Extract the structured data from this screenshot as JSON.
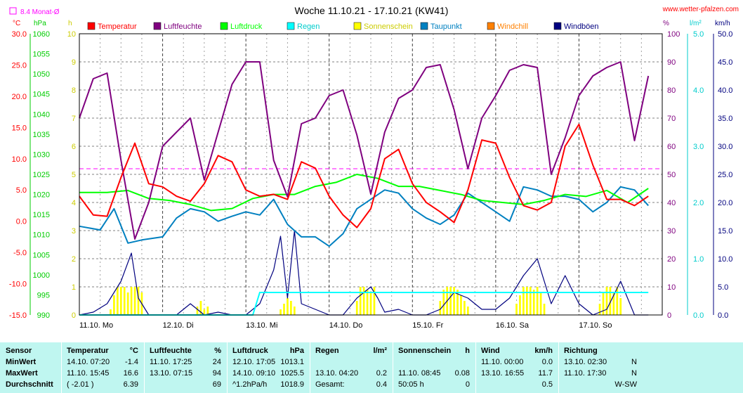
{
  "title": "Woche 11.10.21 - 17.10.21 (KW41)",
  "site": "www.wetter-pfalzen.com",
  "monthly_avg_label": "8.4 Monat-Ø",
  "axis_units": {
    "temp": "°C",
    "pressure": "hPa",
    "sun": "h",
    "humidity": "%",
    "rain": "l/m²",
    "wind": "km/h"
  },
  "legend": [
    {
      "label": "Temperatur",
      "color": "#ff0000"
    },
    {
      "label": "Luftfeuchte",
      "color": "#7f007f"
    },
    {
      "label": "Luftdruck",
      "color": "#00ff00"
    },
    {
      "label": "Regen",
      "color": "#00ffff"
    },
    {
      "label": "Sonnenschein",
      "color": "#ffff00"
    },
    {
      "label": "Taupunkt",
      "color": "#0080c0"
    },
    {
      "label": "Windchill",
      "color": "#ff8000"
    },
    {
      "label": "Windböen",
      "color": "#00007f"
    }
  ],
  "colors": {
    "temp": "#ff0000",
    "humidity": "#7f007f",
    "pressure": "#00ff00",
    "rain": "#00ffff",
    "sun": "#ffff00",
    "dewpoint": "#0080c0",
    "gusts": "#00007f",
    "avg": "#ff00ff",
    "stats_bg": "#bff6f0"
  },
  "chart_data": {
    "type": "line",
    "x_unit": "hours since 11.10. 00:00",
    "x_ticks": [
      "11.10. Mo",
      "12.10. Di",
      "13.10. Mi",
      "14.10. Do",
      "15.10. Fr",
      "16.10. Sa",
      "17.10. So"
    ],
    "axes": {
      "temp": {
        "range": [
          -15,
          30
        ],
        "ticks": [
          "30.0",
          "25.0",
          "20.0",
          "15.0",
          "10.0",
          "5.0",
          "0.0",
          "-5.0",
          "-10.0",
          "-15.0"
        ]
      },
      "pressure": {
        "range": [
          990,
          1060
        ],
        "ticks": [
          "1060",
          "1055",
          "1050",
          "1045",
          "1040",
          "1035",
          "1030",
          "1025",
          "1020",
          "1015",
          "1010",
          "1005",
          "1000",
          "995",
          "990"
        ]
      },
      "sun": {
        "range": [
          0,
          10
        ],
        "ticks": [
          "10",
          "9",
          "8",
          "7",
          "6",
          "5",
          "4",
          "3",
          "2",
          "1",
          "0"
        ]
      },
      "humidity": {
        "range": [
          0,
          100
        ],
        "ticks": [
          "100",
          "90",
          "80",
          "70",
          "60",
          "50",
          "40",
          "30",
          "20",
          "10",
          "0"
        ]
      },
      "rain": {
        "range": [
          0,
          5
        ],
        "ticks": [
          "5.0",
          "4.0",
          "3.0",
          "2.0",
          "1.0",
          "0.0"
        ]
      },
      "wind": {
        "range": [
          0,
          50
        ],
        "ticks": [
          "50.0",
          "45.0",
          "40.0",
          "35.0",
          "30.0",
          "25.0",
          "20.0",
          "15.0",
          "10.0",
          "5.0",
          "0.0"
        ]
      }
    },
    "monthly_avg_temp": 8.4,
    "series": [
      {
        "name": "Temperatur",
        "axis": "temp",
        "x": [
          0,
          4,
          8,
          12,
          16,
          20,
          24,
          28,
          32,
          36,
          40,
          44,
          48,
          52,
          56,
          60,
          64,
          68,
          72,
          76,
          80,
          84,
          88,
          92,
          96,
          100,
          104,
          108,
          112,
          116,
          120,
          124,
          128,
          132,
          136,
          140,
          144,
          148,
          152,
          156,
          160,
          164
        ],
        "y": [
          4,
          1,
          0.8,
          7,
          12.5,
          6,
          5.5,
          4,
          3.2,
          6,
          10.5,
          9.5,
          5,
          4,
          4.3,
          3.5,
          9.5,
          8.5,
          4,
          1,
          -1,
          2,
          10,
          11.5,
          6,
          3,
          1.5,
          -0.2,
          5,
          13,
          12.5,
          7,
          2.5,
          1.8,
          3,
          12,
          15.5,
          9,
          3.5,
          3.5,
          2.5,
          4
        ]
      },
      {
        "name": "Luftfeuchte",
        "axis": "humidity",
        "x": [
          0,
          4,
          8,
          12,
          16,
          20,
          24,
          28,
          32,
          36,
          40,
          44,
          48,
          52,
          56,
          60,
          64,
          68,
          72,
          76,
          80,
          84,
          88,
          92,
          96,
          100,
          104,
          108,
          112,
          116,
          120,
          124,
          128,
          132,
          136,
          140,
          144,
          148,
          152,
          156,
          160,
          164
        ],
        "y": [
          70,
          84,
          86,
          55,
          27,
          40,
          60,
          65,
          70,
          48,
          65,
          82,
          90,
          90,
          55,
          42,
          68,
          70,
          78,
          80,
          64,
          43,
          65,
          77,
          80,
          88,
          89,
          73,
          52,
          70,
          78,
          87,
          89,
          88,
          50,
          63,
          78,
          85,
          88,
          90,
          62,
          85
        ]
      },
      {
        "name": "Luftdruck",
        "axis": "pressure",
        "x": [
          0,
          8,
          14,
          20,
          26,
          32,
          38,
          44,
          50,
          56,
          62,
          68,
          74,
          80,
          86,
          92,
          98,
          104,
          110,
          116,
          122,
          128,
          134,
          140,
          146,
          152,
          158,
          164
        ],
        "y": [
          1020.5,
          1020.5,
          1021,
          1019,
          1018.5,
          1017.5,
          1016,
          1016.5,
          1019,
          1020,
          1020,
          1022,
          1023,
          1025,
          1024,
          1022,
          1022,
          1021,
          1020,
          1018.5,
          1018,
          1017.5,
          1018.5,
          1020,
          1019.5,
          1021,
          1018,
          1021.5
        ]
      },
      {
        "name": "Taupunkt",
        "axis": "temp",
        "x": [
          0,
          6,
          10,
          14,
          18,
          24,
          28,
          32,
          36,
          40,
          44,
          48,
          52,
          56,
          60,
          64,
          68,
          72,
          76,
          80,
          84,
          88,
          92,
          96,
          100,
          104,
          108,
          112,
          116,
          120,
          124,
          128,
          132,
          136,
          140,
          144,
          148,
          152,
          156,
          160,
          164
        ],
        "y": [
          -0.8,
          -1.4,
          2,
          -3.5,
          -3,
          -2.5,
          0.5,
          2,
          1.5,
          0,
          0.8,
          1.5,
          1,
          3.5,
          -0.5,
          -2.5,
          -2.5,
          -4,
          -2,
          2,
          3.5,
          5,
          4.5,
          2,
          0.5,
          -0.5,
          1,
          4.5,
          3,
          1.5,
          0,
          5.5,
          5,
          4,
          4,
          3.5,
          1.5,
          3,
          5.5,
          5,
          2.5
        ]
      },
      {
        "name": "Windböen",
        "axis": "wind",
        "x": [
          0,
          4,
          8,
          12,
          15,
          17,
          20,
          24,
          28,
          32,
          36,
          40,
          44,
          48,
          52,
          56,
          58,
          60,
          62,
          64,
          68,
          72,
          76,
          80,
          84,
          86,
          88,
          92,
          96,
          100,
          104,
          108,
          112,
          116,
          120,
          124,
          128,
          132,
          136,
          140,
          144,
          148,
          152,
          156,
          160,
          164
        ],
        "y": [
          0,
          0.5,
          2,
          6,
          11,
          3,
          0,
          0,
          0,
          2,
          0,
          0.5,
          0,
          0,
          2,
          8,
          14,
          3,
          15,
          2,
          1,
          0,
          0,
          3,
          5,
          3,
          0.5,
          1,
          0,
          0,
          1,
          4,
          3,
          1,
          1,
          3,
          7,
          10,
          2,
          7,
          2,
          0,
          1,
          6,
          0,
          0
        ]
      }
    ],
    "rain_series": {
      "name": "Regen",
      "axis": "rain",
      "x": [
        0,
        50,
        52,
        164
      ],
      "y": [
        0,
        0,
        0.4,
        0.4
      ]
    },
    "sun_bars": {
      "name": "Sonnenschein",
      "axis": "sun",
      "groups": [
        {
          "start": 9,
          "values": [
            0.2,
            0.7,
            1,
            1,
            1,
            0.8,
            1,
            1,
            1,
            0.8
          ]
        },
        {
          "start": 34,
          "values": [
            0.3,
            0.5,
            0.2,
            0.3
          ]
        },
        {
          "start": 58,
          "values": [
            0.2,
            0.4,
            0.6,
            0.5,
            0.3
          ]
        },
        {
          "start": 80,
          "values": [
            0.5,
            1,
            1,
            0.9,
            0.8,
            1
          ]
        },
        {
          "start": 104,
          "values": [
            0.5,
            0.9,
            1,
            1,
            1,
            0.9,
            0.7,
            0.5,
            0.3
          ]
        },
        {
          "start": 126,
          "values": [
            0.4,
            0.7,
            1,
            1,
            1,
            0.9,
            1,
            0.8,
            0.4
          ]
        },
        {
          "start": 150,
          "values": [
            0.4,
            0.8,
            1,
            1,
            0.8,
            1,
            0.6
          ]
        }
      ]
    }
  },
  "stats": {
    "cols": [
      {
        "name": "Sensor",
        "unit": "",
        "rows": [
          "MinWert",
          "MaxWert",
          "Durchschnitt"
        ]
      },
      {
        "name": "Temperatur",
        "unit": "°C",
        "rows": [
          [
            "14.10.  07:20",
            "-1.4"
          ],
          [
            "11.10.  15:45",
            "16.6"
          ],
          [
            "( -2.01 )",
            "6.39"
          ]
        ]
      },
      {
        "name": "Luftfeuchte",
        "unit": "%",
        "rows": [
          [
            "11.10.  17:25",
            "24"
          ],
          [
            "13.10.  07:15",
            "94"
          ],
          [
            "",
            "69"
          ]
        ]
      },
      {
        "name": "Luftdruck",
        "unit": "hPa",
        "rows": [
          [
            "12.10.  17:05",
            "1013.1"
          ],
          [
            "14.10.  09:10",
            "1025.5"
          ],
          [
            "^1.2hPa/h",
            "1018.9"
          ]
        ]
      },
      {
        "name": "Regen",
        "unit": "l/m²",
        "rows": [
          [
            "",
            ""
          ],
          [
            "13.10.  04:20",
            "0.2"
          ],
          [
            "Gesamt:",
            "0.4"
          ]
        ]
      },
      {
        "name": "Sonnenschein",
        "unit": "h",
        "rows": [
          [
            "",
            ""
          ],
          [
            "11.10.  08:45",
            "0.08"
          ],
          [
            "50:05 h",
            "0"
          ]
        ]
      },
      {
        "name": "Wind",
        "unit": "km/h",
        "rows": [
          [
            "11.10.  00:00",
            "0.0"
          ],
          [
            "13.10.  16:55",
            "11.7"
          ],
          [
            "",
            "0.5"
          ]
        ]
      },
      {
        "name": "Richtung",
        "unit": "",
        "rows": [
          [
            "13.10.  02:30",
            "N"
          ],
          [
            "11.10.  17:30",
            "N"
          ],
          [
            "",
            "W-SW"
          ]
        ]
      }
    ]
  }
}
